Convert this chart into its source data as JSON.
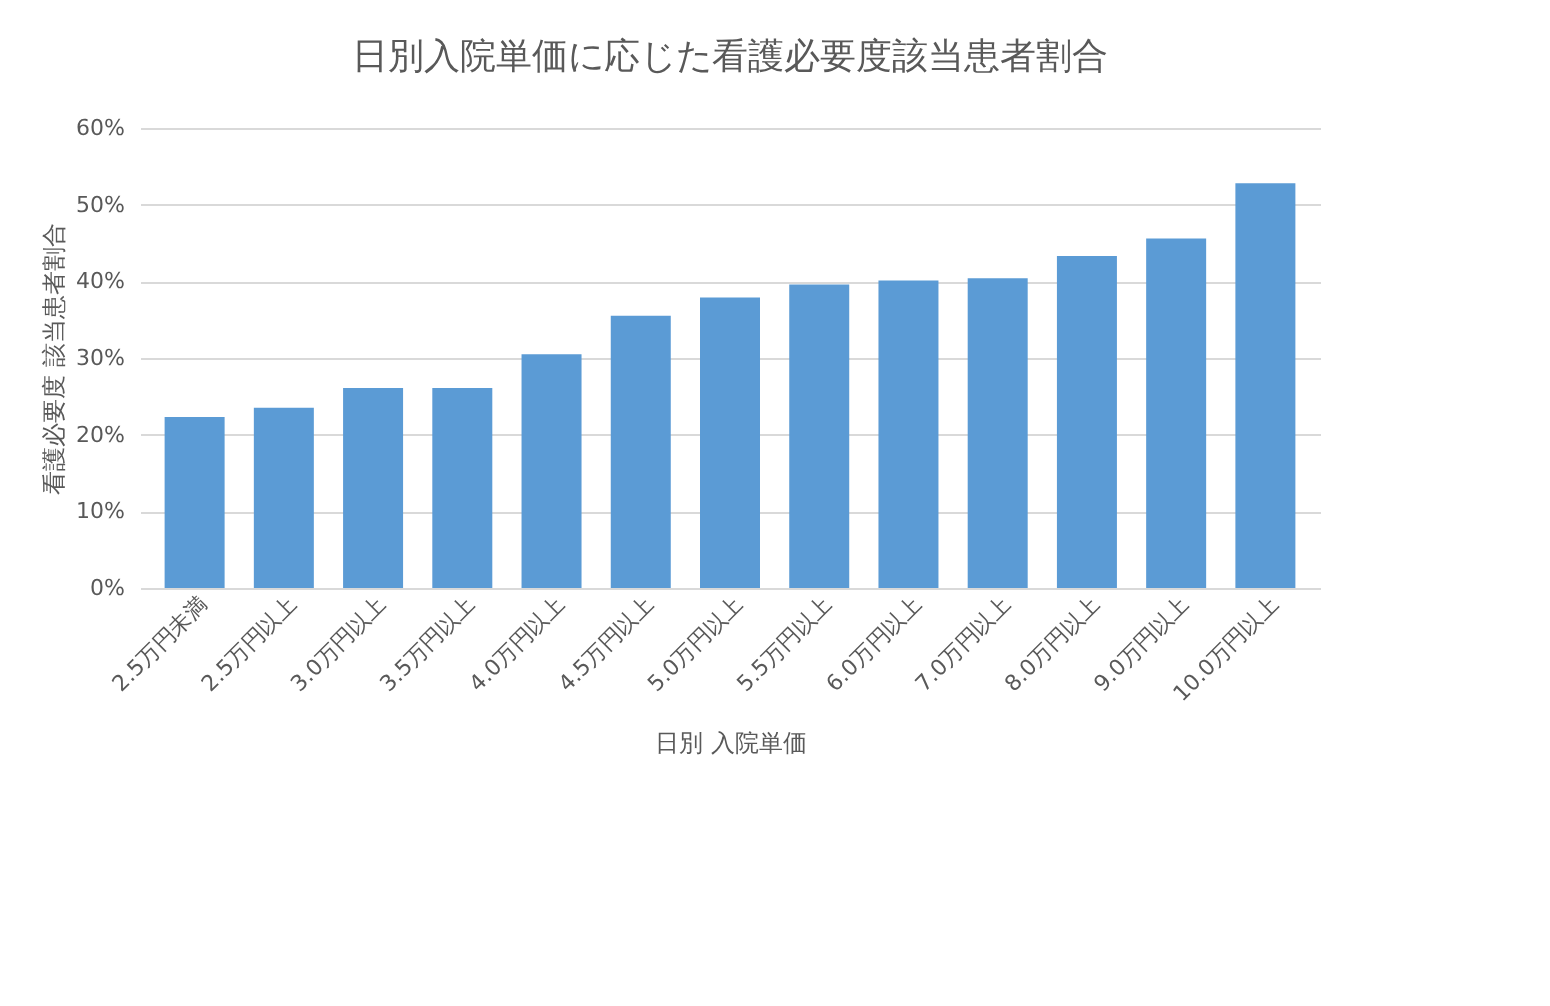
{
  "chart_data": {
    "type": "bar",
    "title": "日別入院単価に応じた看護必要度該当患者割合",
    "xlabel": "日別 入院単価",
    "ylabel": "看護必要度 該当患者割合",
    "categories": [
      "2.5万円未満",
      "2.5万円以上",
      "3.0万円以上",
      "3.5万円以上",
      "4.0万円以上",
      "4.5万円以上",
      "5.0万円以上",
      "5.5万円以上",
      "6.0万円以上",
      "7.0万円以上",
      "8.0万円以上",
      "9.0万円以上",
      "10.0万円以上"
    ],
    "values": [
      22.3,
      23.5,
      26.1,
      26.1,
      30.5,
      35.5,
      37.9,
      39.6,
      40.1,
      40.4,
      43.3,
      45.6,
      52.8
    ],
    "color": "#5b9bd5",
    "ylim": [
      0,
      60
    ],
    "yticks": [
      {
        "value": 0,
        "label": "0%"
      },
      {
        "value": 10,
        "label": "10%"
      },
      {
        "value": 20,
        "label": "20%"
      },
      {
        "value": 30,
        "label": "30%"
      },
      {
        "value": 40,
        "label": "40%"
      },
      {
        "value": 50,
        "label": "50%"
      },
      {
        "value": 60,
        "label": "60%"
      }
    ],
    "grid": "y"
  }
}
